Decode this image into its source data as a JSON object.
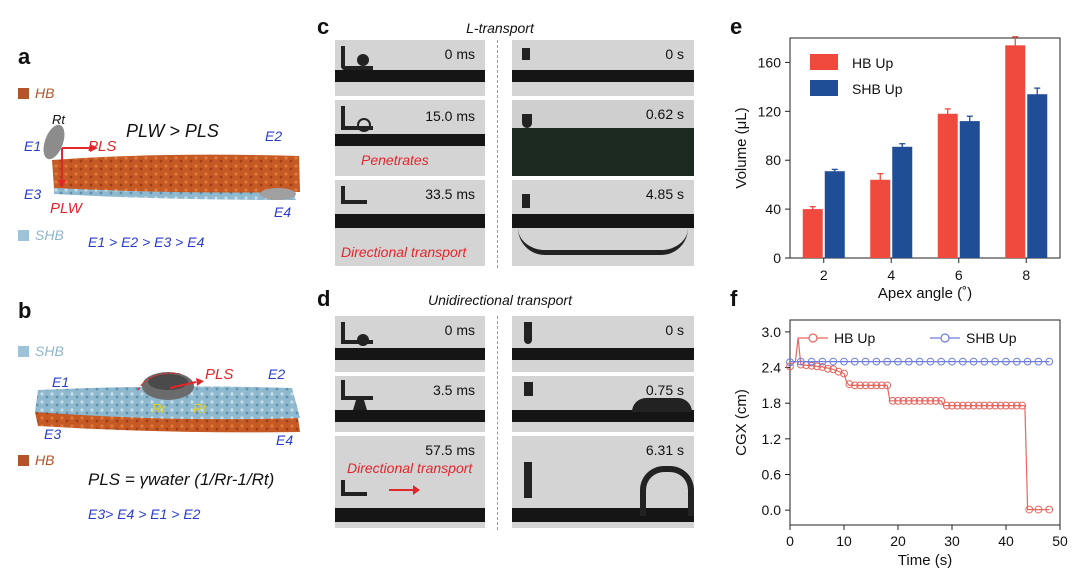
{
  "panels": {
    "a": {
      "letter": "a",
      "hb_label": "HB",
      "shb_label": "SHB",
      "eq_pressure": "P",
      "eq_full": "PLW > PLS",
      "labels": {
        "rt": "Rt",
        "e1": "E1",
        "e2": "E2",
        "e3": "E3",
        "e4": "E4",
        "pls": "PLS",
        "plw": "PLW"
      },
      "inequality": "E1 > E2 > E3 > E4"
    },
    "b": {
      "letter": "b",
      "shb_label": "SHB",
      "hb_label": "HB",
      "labels": {
        "e1": "E1",
        "e2": "E2",
        "e3": "E3",
        "e4": "E4",
        "pls": "PLS",
        "rr": "Rr",
        "rt": "Rt"
      },
      "formula": "PLS = γwater (1/Rr-1/Rt)",
      "inequality": "E3> E4 > E1 > E2"
    },
    "c": {
      "letter": "c",
      "title": "L-transport",
      "left_times": [
        "0 ms",
        "15.0 ms",
        "33.5 ms"
      ],
      "right_times": [
        "0 s",
        "0.62 s",
        "4.85 s"
      ],
      "caption_penetrates": "Penetrates",
      "caption_directional": "Directional transport"
    },
    "d": {
      "letter": "d",
      "title": "Unidirectional transport",
      "left_times": [
        "0  ms",
        "3.5 ms",
        "57.5 ms"
      ],
      "right_times": [
        "0 s",
        "0.75 s",
        "6.31 s"
      ],
      "caption_directional": "Directional transport"
    },
    "e": {
      "letter": "e"
    },
    "f": {
      "letter": "f"
    }
  },
  "chart_data": [
    {
      "id": "e",
      "type": "bar",
      "categories": [
        "2",
        "4",
        "6",
        "8"
      ],
      "series": [
        {
          "name": "HB Up",
          "values": [
            40,
            64,
            118,
            174
          ],
          "errors": [
            2,
            5,
            4,
            7
          ],
          "color": "#f04a3e"
        },
        {
          "name": "SHB Up",
          "values": [
            71,
            91,
            112,
            134
          ],
          "errors": [
            1.5,
            2.5,
            4,
            5
          ],
          "color": "#1f4e96"
        }
      ],
      "xlabel": "Apex angle (˚)",
      "ylabel": "Volume (μL)",
      "yticks": [
        0,
        40,
        80,
        120,
        160
      ],
      "ylim": [
        0,
        180
      ],
      "legend": "top-left"
    },
    {
      "id": "f",
      "type": "line",
      "xlabel": "Time (s)",
      "ylabel": "CGX (cm)",
      "xticks": [
        0,
        10,
        20,
        30,
        40,
        50
      ],
      "yticks": [
        0.0,
        0.6,
        1.2,
        1.8,
        2.4,
        3.0
      ],
      "ytick_labels": [
        "0.0",
        "0.6",
        "1.2",
        "1.8",
        "2.4",
        "3.0"
      ],
      "xlim": [
        0,
        50
      ],
      "ylim": [
        -0.25,
        3.2
      ],
      "legend": "top",
      "series": [
        {
          "name": "HB Up",
          "color": "#e8665e",
          "line": [
            [
              0,
              2.42
            ],
            [
              1,
              2.5
            ],
            [
              1.5,
              2.9
            ],
            [
              2,
              2.45
            ],
            [
              4,
              2.43
            ],
            [
              6,
              2.41
            ],
            [
              8,
              2.37
            ],
            [
              10,
              2.3
            ],
            [
              10.5,
              2.15
            ],
            [
              11,
              2.1
            ],
            [
              18,
              2.1
            ],
            [
              18.5,
              1.84
            ],
            [
              19,
              1.84
            ],
            [
              28,
              1.84
            ],
            [
              28.5,
              1.76
            ],
            [
              43.5,
              1.76
            ],
            [
              44,
              0.01
            ],
            [
              48,
              0.01
            ]
          ],
          "markers": [
            [
              0,
              2.42
            ],
            [
              2,
              2.45
            ],
            [
              3,
              2.44
            ],
            [
              4,
              2.43
            ],
            [
              5,
              2.42
            ],
            [
              6,
              2.41
            ],
            [
              7,
              2.38
            ],
            [
              8,
              2.37
            ],
            [
              9,
              2.33
            ],
            [
              10,
              2.3
            ],
            [
              11,
              2.12
            ],
            [
              12,
              2.1
            ],
            [
              13,
              2.1
            ],
            [
              14,
              2.1
            ],
            [
              15,
              2.1
            ],
            [
              16,
              2.1
            ],
            [
              17,
              2.1
            ],
            [
              18,
              2.1
            ],
            [
              19,
              1.84
            ],
            [
              20,
              1.84
            ],
            [
              21,
              1.84
            ],
            [
              22,
              1.84
            ],
            [
              23,
              1.84
            ],
            [
              24,
              1.84
            ],
            [
              25,
              1.84
            ],
            [
              26,
              1.84
            ],
            [
              27,
              1.84
            ],
            [
              28,
              1.84
            ],
            [
              29,
              1.76
            ],
            [
              30,
              1.76
            ],
            [
              31,
              1.76
            ],
            [
              32,
              1.76
            ],
            [
              33,
              1.76
            ],
            [
              34,
              1.76
            ],
            [
              35,
              1.76
            ],
            [
              36,
              1.76
            ],
            [
              37,
              1.76
            ],
            [
              38,
              1.76
            ],
            [
              39,
              1.76
            ],
            [
              40,
              1.76
            ],
            [
              41,
              1.76
            ],
            [
              42,
              1.76
            ],
            [
              43,
              1.76
            ],
            [
              44.3,
              0.01
            ],
            [
              46,
              0.01
            ],
            [
              48,
              0.01
            ]
          ]
        },
        {
          "name": "SHB Up",
          "color": "#6c7ddf",
          "line": [
            [
              0,
              2.5
            ],
            [
              48,
              2.5
            ]
          ],
          "markers": [
            [
              0,
              2.49
            ],
            [
              2,
              2.5
            ],
            [
              4,
              2.5
            ],
            [
              6,
              2.5
            ],
            [
              8,
              2.5
            ],
            [
              10,
              2.5
            ],
            [
              12,
              2.5
            ],
            [
              14,
              2.5
            ],
            [
              16,
              2.5
            ],
            [
              18,
              2.5
            ],
            [
              20,
              2.5
            ],
            [
              22,
              2.5
            ],
            [
              24,
              2.5
            ],
            [
              26,
              2.5
            ],
            [
              28,
              2.5
            ],
            [
              30,
              2.5
            ],
            [
              32,
              2.5
            ],
            [
              34,
              2.5
            ],
            [
              36,
              2.5
            ],
            [
              38,
              2.5
            ],
            [
              40,
              2.5
            ],
            [
              42,
              2.5
            ],
            [
              44,
              2.5
            ],
            [
              46,
              2.5
            ],
            [
              48,
              2.5
            ]
          ]
        }
      ]
    }
  ]
}
